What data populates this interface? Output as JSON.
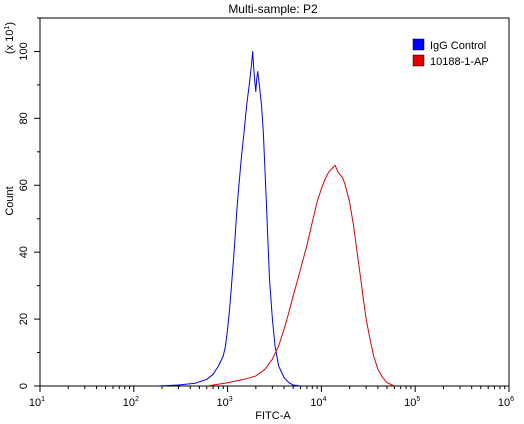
{
  "chart_data": {
    "type": "line",
    "title": "Multi-sample: P2",
    "xlabel": "FITC-A",
    "ylabel": "Count",
    "yscale_note": "(x 10",
    "yscale_exp": "1",
    "yscale_close": ")",
    "xscale": "log",
    "xlim": [
      10,
      1000000
    ],
    "ylim": [
      0,
      110
    ],
    "x_ticks": [
      {
        "base": "10",
        "exp": "1"
      },
      {
        "base": "10",
        "exp": "2"
      },
      {
        "base": "10",
        "exp": "3"
      },
      {
        "base": "10",
        "exp": "4"
      },
      {
        "base": "10",
        "exp": "5"
      },
      {
        "base": "10",
        "exp": "6"
      }
    ],
    "y_ticks": [
      "0",
      "20",
      "40",
      "60",
      "80",
      "100"
    ],
    "grid": false,
    "legend_position": "top-right",
    "series": [
      {
        "name": "IgG Control",
        "color": "#0000ff",
        "x": [
          180,
          300,
          450,
          600,
          700,
          800,
          900,
          950,
          1000,
          1050,
          1100,
          1150,
          1200,
          1250,
          1300,
          1400,
          1500,
          1600,
          1700,
          1800,
          1850,
          1900,
          1950,
          2000,
          2050,
          2100,
          2200,
          2300,
          2400,
          2500,
          2600,
          2700,
          2800,
          3000,
          3200,
          3500,
          4000,
          4500,
          5000,
          6000
        ],
        "y": [
          0,
          0.3,
          0.8,
          2,
          3.5,
          6,
          9,
          12,
          17,
          23,
          30,
          37,
          44,
          52,
          58,
          68,
          76,
          84,
          90,
          96,
          100,
          95,
          91,
          88,
          92,
          94,
          89,
          84,
          76,
          65,
          54,
          42,
          32,
          20,
          12,
          6,
          2.5,
          1,
          0.3,
          0
        ]
      },
      {
        "name": "10188-1-AP",
        "color": "#e00000",
        "x": [
          600,
          1000,
          1500,
          2000,
          2500,
          3000,
          3500,
          4000,
          4500,
          5000,
          5500,
          6000,
          7000,
          8000,
          9000,
          10000,
          11000,
          12000,
          13000,
          14000,
          15000,
          16000,
          17000,
          18000,
          20000,
          22000,
          24000,
          26000,
          28000,
          30000,
          33000,
          36000,
          40000,
          45000,
          50000,
          60000
        ],
        "y": [
          0,
          1,
          2,
          3,
          5,
          8,
          12,
          17,
          22,
          27,
          31,
          35,
          42,
          49,
          55,
          59,
          62,
          64,
          65,
          66,
          64,
          63,
          62,
          60,
          55,
          48,
          40,
          33,
          26,
          20,
          14,
          9,
          5,
          2.5,
          1,
          0
        ]
      }
    ]
  }
}
